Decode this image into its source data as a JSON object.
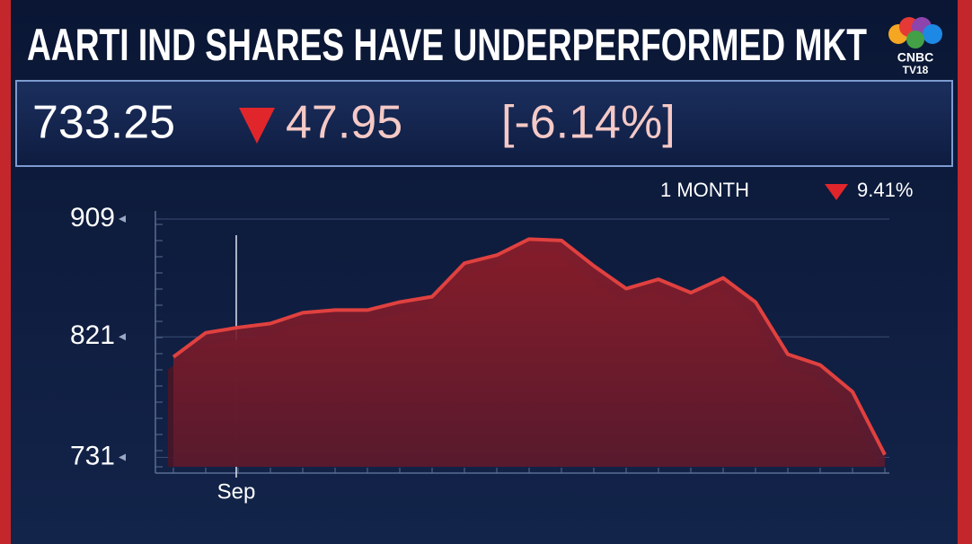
{
  "header": {
    "price": "733.25",
    "change": "47.95",
    "change_pct": "[-6.14%]",
    "period": "1 MONTH",
    "period_change": "9.41%",
    "logo": [
      "CNBC",
      "TV18"
    ]
  },
  "chart_data": {
    "type": "area",
    "title": "AARTI IND SHARES HAVE UNDERPERFORMED MKT",
    "categories": [
      null,
      null,
      "Sep",
      null,
      null,
      null,
      null,
      null,
      null,
      null,
      null,
      null,
      null,
      null,
      null,
      null,
      null,
      null,
      null,
      null,
      null,
      null,
      null
    ],
    "series": [
      {
        "name": "Aarti Industries",
        "color": "#e0413f",
        "values": [
          806,
          824,
          828,
          831,
          839,
          841,
          841,
          847,
          851,
          876,
          882,
          894,
          893,
          874,
          857,
          864,
          854,
          865,
          847,
          808,
          800,
          780,
          733
        ]
      }
    ],
    "ylim": [
      724,
      915
    ],
    "yticks": [
      731,
      821,
      909
    ],
    "grid": true
  }
}
